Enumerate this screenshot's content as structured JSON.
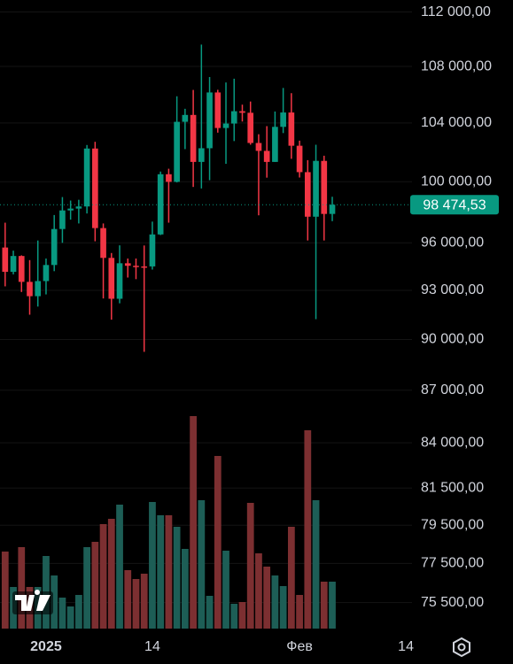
{
  "chart_data": {
    "type": "candlestick",
    "log_scale": true,
    "grid": true,
    "up_color": "#089981",
    "down_color": "#f23645",
    "volume_up_color": "#1d5e56",
    "volume_down_color": "#7c2f31",
    "open": [
      95700,
      94160,
      95160,
      93530,
      92640,
      93580,
      94590,
      96890,
      98100,
      98220,
      98360,
      102240,
      96950,
      95040,
      92480,
      94700,
      94540,
      94500,
      94500,
      96540,
      100500,
      99990,
      104080,
      104560,
      101330,
      102260,
      106140,
      103650,
      103960,
      104820,
      104710,
      102620,
      102080,
      101330,
      103730,
      104730,
      102430,
      100640,
      97690,
      101400,
      97870
    ],
    "high": [
      97300,
      95500,
      95200,
      94900,
      96150,
      95000,
      97800,
      98980,
      98750,
      98800,
      102480,
      102700,
      97250,
      95350,
      95840,
      95000,
      95000,
      95830,
      97370,
      100680,
      100870,
      105870,
      104990,
      106320,
      109590,
      107240,
      106330,
      106850,
      107120,
      105280,
      105500,
      103220,
      103780,
      104800,
      106460,
      106090,
      102780,
      101450,
      102500,
      101750,
      99000
    ],
    "low": [
      93250,
      94000,
      92900,
      91500,
      92000,
      92750,
      94200,
      96000,
      97500,
      97250,
      97900,
      96100,
      92500,
      91200,
      92200,
      93800,
      93700,
      89260,
      94300,
      96500,
      97300,
      99950,
      102200,
      99650,
      99550,
      100100,
      103330,
      101200,
      102750,
      104100,
      102500,
      97780,
      100270,
      101330,
      103300,
      101540,
      100280,
      96150,
      91230,
      96150,
      97400
    ],
    "close": [
      94160,
      95160,
      93530,
      92640,
      93580,
      94590,
      96890,
      98100,
      98220,
      98360,
      102240,
      96950,
      95040,
      92480,
      94700,
      94540,
      94500,
      94480,
      96540,
      100500,
      99990,
      104080,
      104560,
      101330,
      102260,
      106140,
      103650,
      103960,
      104820,
      104710,
      102620,
      102080,
      101330,
      103730,
      104730,
      102430,
      100640,
      97690,
      101400,
      97870,
      98474.53
    ],
    "volume": [
      87,
      47,
      92,
      47,
      47,
      82,
      60,
      35,
      25,
      38,
      92,
      98,
      118,
      124,
      140,
      66,
      56,
      62,
      143,
      128,
      128,
      115,
      90,
      240,
      145,
      37,
      195,
      88,
      28,
      30,
      142,
      85,
      70,
      60,
      48,
      115,
      38,
      224,
      145,
      53,
      53
    ],
    "ylim": [
      74200,
      112900
    ],
    "yticks": [
      {
        "value": 112000,
        "label": "112 000,00"
      },
      {
        "value": 108000,
        "label": "108 000,00"
      },
      {
        "value": 104000,
        "label": "104 000,00"
      },
      {
        "value": 100000,
        "label": "100 000,00"
      },
      {
        "value": 96000,
        "label": "96 000,00"
      },
      {
        "value": 93000,
        "label": "93 000,00"
      },
      {
        "value": 90000,
        "label": "90 000,00"
      },
      {
        "value": 87000,
        "label": "87 000,00"
      },
      {
        "value": 84000,
        "label": "84 000,00"
      },
      {
        "value": 81500,
        "label": "81 500,00"
      },
      {
        "value": 79500,
        "label": "79 500,00"
      },
      {
        "value": 77500,
        "label": "77 500,00"
      },
      {
        "value": 75500,
        "label": "75 500,00"
      }
    ],
    "xlim": [
      -0.63,
      49.75
    ],
    "xticks": [
      {
        "value": 5,
        "label": "2025"
      },
      {
        "value": 18,
        "label": "14"
      },
      {
        "value": 36,
        "label": "Фев"
      },
      {
        "value": 49,
        "label": "14"
      }
    ],
    "last_price": {
      "value": 98474.53,
      "label": "98 474,53"
    }
  }
}
